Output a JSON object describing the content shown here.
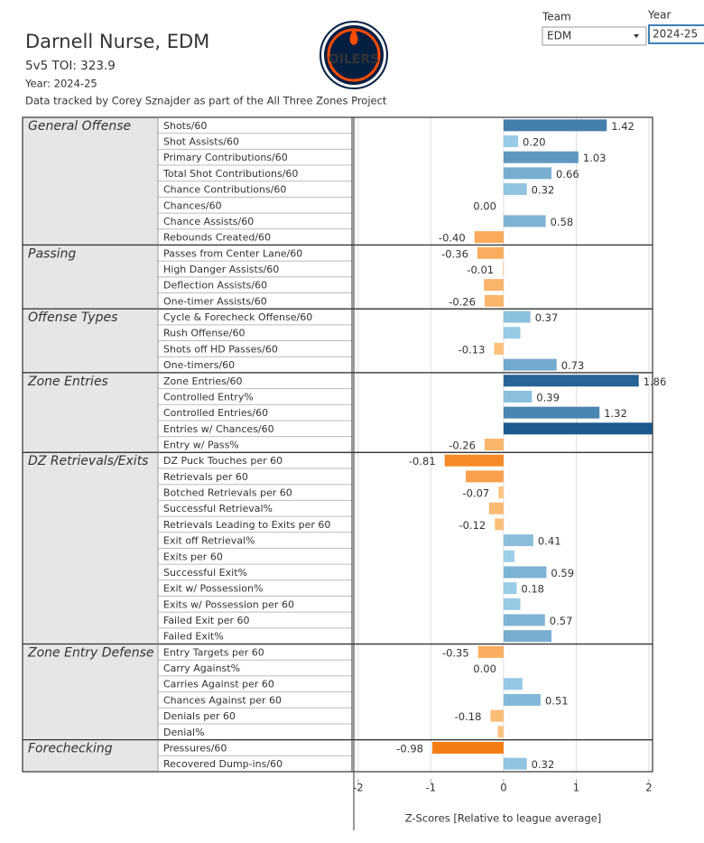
{
  "header": {
    "title": "Darnell Nurse, EDM",
    "toi": "5v5 TOI: 323.9",
    "year": "Year: 2024-25",
    "note": "Data tracked by Corey Sznajder as part of the All Three Zones Project",
    "logo_text": "OILERS"
  },
  "filters": [
    {
      "label": "Team",
      "value": "EDM"
    },
    {
      "label": "Year",
      "value": "2024-25"
    }
  ],
  "chart_data": {
    "type": "bar",
    "x_label": "Z-Scores [Relative to league average]",
    "xlim": [
      -2.06,
      2.05
    ],
    "xticks": [
      -2,
      -1,
      0,
      1,
      2
    ],
    "grid": true,
    "color_scale": {
      "positive": {
        "domain": [
          0,
          2
        ],
        "colors": [
          "#a6d8f0",
          "#1c5a90"
        ]
      },
      "negative": {
        "domain": [
          0,
          -1
        ],
        "colors": [
          "#fdca8c",
          "#f47a10"
        ]
      }
    },
    "groups": [
      {
        "name": "General Offense",
        "categories": [
          "Shots/60",
          "Shot Assists/60",
          "Primary Contributions/60",
          "Total Shot Contributions/60",
          "Chance Contributions/60",
          "Chances/60",
          "Chance Assists/60",
          "Rebounds Created/60"
        ],
        "values": [
          1.42,
          0.2,
          1.03,
          0.66,
          0.32,
          0,
          0.58,
          -0.4
        ],
        "value_labels": [
          "1.42",
          "0.20",
          "1.03",
          "0.66",
          "0.32",
          "0.00",
          "0.58",
          "-0.40"
        ]
      },
      {
        "name": "Passing",
        "categories": [
          "Passes from Center Lane/60",
          "High Danger Assists/60",
          "Deflection Assists/60",
          "One-timer Assists/60"
        ],
        "values": [
          -0.36,
          -0.01,
          -0.27,
          -0.26
        ],
        "value_labels": [
          "-0.36",
          "-0.01",
          null,
          "-0.26"
        ]
      },
      {
        "name": "Offense Types",
        "categories": [
          "Cycle & Forecheck Offense/60",
          "Rush Offense/60",
          "Shots off HD Passes/60",
          "One-timers/60"
        ],
        "values": [
          0.37,
          0.23,
          -0.13,
          0.73
        ],
        "value_labels": [
          "0.37",
          null,
          "-0.13",
          "0.73"
        ]
      },
      {
        "name": "Zone Entries",
        "categories": [
          "Zone Entries/60",
          "Controlled Entry%",
          "Controlled Entries/60",
          "Entries w/ Chances/60",
          "Entry w/ Pass%"
        ],
        "values": [
          1.86,
          0.39,
          1.32,
          2.05,
          -0.26
        ],
        "value_labels": [
          "1.86",
          "0.39",
          "1.32",
          null,
          "-0.26"
        ]
      },
      {
        "name": "DZ Retrievals/Exits",
        "categories": [
          "DZ Puck Touches per 60",
          "Retrievals per 60",
          "Botched Retrievals per 60",
          "Successful Retrieval%",
          "Retrievals Leading to Exits per 60",
          "Exit off Retrieval%",
          "Exits per 60",
          "Successful Exit%",
          "Exit w/ Possession%",
          "Exits w/ Possession per 60",
          "Failed Exit per 60",
          "Failed Exit%"
        ],
        "values": [
          -0.81,
          -0.52,
          -0.07,
          -0.2,
          -0.12,
          0.41,
          0.15,
          0.59,
          0.18,
          0.23,
          0.57,
          0.66
        ],
        "value_labels": [
          "-0.81",
          null,
          "-0.07",
          null,
          "-0.12",
          "0.41",
          null,
          "0.59",
          "0.18",
          null,
          "0.57",
          null
        ]
      },
      {
        "name": "Zone Entry Defense",
        "categories": [
          "Entry Targets per 60",
          "Carry Against%",
          "Carries Against per 60",
          "Chances Against per 60",
          "Denials per 60",
          "Denial%"
        ],
        "values": [
          -0.35,
          0,
          0.26,
          0.51,
          -0.18,
          -0.08
        ],
        "value_labels": [
          "-0.35",
          "0.00",
          null,
          "0.51",
          "-0.18",
          null
        ]
      },
      {
        "name": "Forechecking",
        "categories": [
          "Pressures/60",
          "Recovered Dump-ins/60"
        ],
        "values": [
          -0.98,
          0.32
        ],
        "value_labels": [
          "-0.98",
          "0.32"
        ]
      }
    ]
  }
}
